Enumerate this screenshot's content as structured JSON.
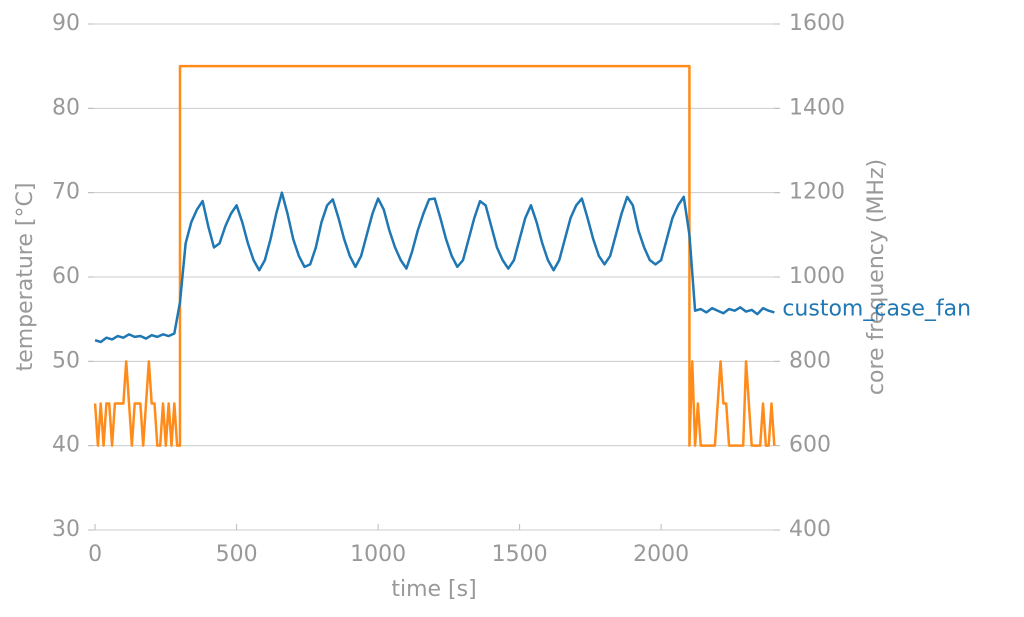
{
  "chart_data": {
    "type": "line",
    "xlabel": "time [s]",
    "ylabel": "temperature [°C]",
    "y2label": "core frequency (MHz)",
    "xlim": [
      -25,
      2420
    ],
    "ylim": [
      30,
      90
    ],
    "y2lim": [
      400,
      1600
    ],
    "xticks": [
      0,
      500,
      1000,
      1500,
      2000
    ],
    "yticks": [
      30,
      40,
      50,
      60,
      70,
      80,
      90
    ],
    "y2ticks": [
      400,
      600,
      800,
      1000,
      1200,
      1400,
      1600
    ],
    "grid": true,
    "series": [
      {
        "name": "custom_case_fan",
        "color": "#1f77b4",
        "x": [
          0,
          20,
          40,
          60,
          80,
          100,
          120,
          140,
          160,
          180,
          200,
          220,
          240,
          260,
          280,
          300,
          320,
          340,
          360,
          380,
          400,
          420,
          440,
          460,
          480,
          500,
          520,
          540,
          560,
          580,
          600,
          620,
          640,
          660,
          680,
          700,
          720,
          740,
          760,
          780,
          800,
          820,
          840,
          860,
          880,
          900,
          920,
          940,
          960,
          980,
          1000,
          1020,
          1040,
          1060,
          1080,
          1100,
          1120,
          1140,
          1160,
          1180,
          1200,
          1220,
          1240,
          1260,
          1280,
          1300,
          1320,
          1340,
          1360,
          1380,
          1400,
          1420,
          1440,
          1460,
          1480,
          1500,
          1520,
          1540,
          1560,
          1580,
          1600,
          1620,
          1640,
          1660,
          1680,
          1700,
          1720,
          1740,
          1760,
          1780,
          1800,
          1820,
          1840,
          1860,
          1880,
          1900,
          1920,
          1940,
          1960,
          1980,
          2000,
          2020,
          2040,
          2060,
          2080,
          2100,
          2120,
          2140,
          2160,
          2180,
          2200,
          2220,
          2240,
          2260,
          2280,
          2300,
          2320,
          2340,
          2360,
          2380,
          2400
        ],
        "values": [
          52.5,
          52.3,
          52.8,
          52.6,
          53,
          52.8,
          53.2,
          52.9,
          53,
          52.7,
          53.1,
          52.9,
          53.2,
          53,
          53.3,
          57,
          64,
          66.5,
          68,
          69,
          66,
          63.5,
          64,
          66,
          67.5,
          68.5,
          66.5,
          64,
          62,
          60.8,
          62,
          64.5,
          67.5,
          70,
          67.5,
          64.5,
          62.5,
          61.2,
          61.5,
          63.5,
          66.5,
          68.5,
          69.2,
          67,
          64.5,
          62.5,
          61.2,
          62.5,
          65,
          67.5,
          69.3,
          68,
          65.5,
          63.5,
          62,
          61,
          63,
          65.5,
          67.5,
          69.2,
          69.3,
          67,
          64.5,
          62.5,
          61.2,
          62,
          64.5,
          67,
          69,
          68.5,
          66,
          63.5,
          62,
          61,
          62,
          64.5,
          67,
          68.5,
          66.5,
          64,
          62,
          60.8,
          62,
          64.5,
          67,
          68.5,
          69.3,
          67,
          64.5,
          62.5,
          61.5,
          62.5,
          65,
          67.5,
          69.5,
          68.5,
          65.5,
          63.5,
          62,
          61.5,
          62,
          64.5,
          67,
          68.5,
          69.5,
          65,
          56,
          56.2,
          55.8,
          56.3,
          56,
          55.7,
          56.2,
          56,
          56.4,
          55.9,
          56.1,
          55.6,
          56.3,
          56,
          55.8
        ]
      },
      {
        "color": "#ff8c1a",
        "axis": "y2",
        "x": [
          0,
          10,
          20,
          30,
          40,
          50,
          60,
          70,
          80,
          90,
          100,
          110,
          120,
          130,
          140,
          150,
          160,
          170,
          180,
          190,
          200,
          210,
          220,
          230,
          240,
          250,
          260,
          270,
          280,
          290,
          300,
          300,
          2100,
          2100,
          2110,
          2120,
          2130,
          2140,
          2150,
          2160,
          2170,
          2180,
          2190,
          2200,
          2210,
          2220,
          2230,
          2240,
          2250,
          2260,
          2270,
          2280,
          2290,
          2300,
          2310,
          2320,
          2330,
          2340,
          2350,
          2360,
          2370,
          2380,
          2390,
          2400
        ],
        "values": [
          700,
          600,
          700,
          600,
          700,
          700,
          600,
          700,
          700,
          700,
          700,
          800,
          700,
          600,
          700,
          700,
          700,
          600,
          700,
          800,
          700,
          700,
          600,
          600,
          700,
          600,
          700,
          600,
          700,
          600,
          600,
          1500,
          1500,
          600,
          800,
          600,
          700,
          600,
          600,
          600,
          600,
          600,
          600,
          700,
          800,
          700,
          700,
          600,
          600,
          600,
          600,
          600,
          600,
          800,
          700,
          600,
          600,
          600,
          600,
          700,
          600,
          600,
          700,
          600
        ]
      }
    ]
  }
}
